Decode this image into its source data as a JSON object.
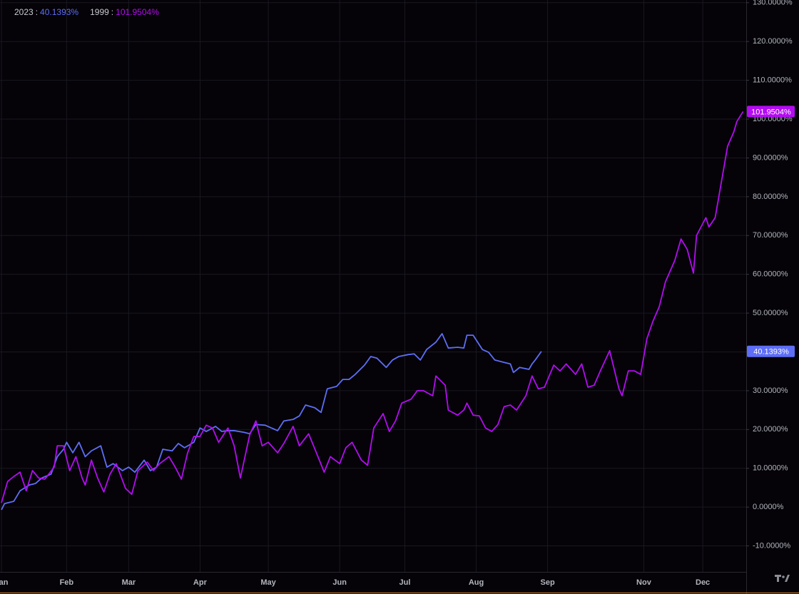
{
  "chart_data": {
    "type": "line",
    "legend_separator": ":",
    "xlim": [
      0,
      240
    ],
    "xticks": [
      {
        "value": 0,
        "label": "Jan"
      },
      {
        "value": 21,
        "label": "Feb"
      },
      {
        "value": 41,
        "label": "Mar"
      },
      {
        "value": 64,
        "label": "Apr"
      },
      {
        "value": 86,
        "label": "May"
      },
      {
        "value": 109,
        "label": "Jun"
      },
      {
        "value": 130,
        "label": "Jul"
      },
      {
        "value": 153,
        "label": "Aug"
      },
      {
        "value": 176,
        "label": "Sep"
      },
      {
        "value": 207,
        "label": "Nov"
      },
      {
        "value": 226,
        "label": "Dec"
      }
    ],
    "ylim": [
      -16.7,
      130.7
    ],
    "yticks": [
      {
        "value": -10,
        "label": "-10.0000%"
      },
      {
        "value": 0,
        "label": "0.0000%"
      },
      {
        "value": 10,
        "label": "10.0000%"
      },
      {
        "value": 20,
        "label": "20.0000%"
      },
      {
        "value": 30,
        "label": "30.0000%"
      },
      {
        "value": 40,
        "label": "40.0000%"
      },
      {
        "value": 50,
        "label": "50.0000%"
      },
      {
        "value": 60,
        "label": "60.0000%"
      },
      {
        "value": 70,
        "label": "70.0000%"
      },
      {
        "value": 80,
        "label": "80.0000%"
      },
      {
        "value": 90,
        "label": "90.0000%"
      },
      {
        "value": 100,
        "label": "100.0000%"
      },
      {
        "value": 110,
        "label": "110.0000%"
      },
      {
        "value": 120,
        "label": "120.0000%"
      },
      {
        "value": 130,
        "label": "130.0000%"
      }
    ],
    "grid": true,
    "series": [
      {
        "name": "2023",
        "color": "#5e6ef7",
        "last_value_label": "40.1393%",
        "x": [
          0,
          1,
          4,
          6,
          9,
          11,
          13,
          16,
          18,
          20,
          21,
          23,
          25,
          27,
          29,
          32,
          34,
          36,
          39,
          41,
          43,
          46,
          48,
          50,
          52,
          55,
          57,
          59,
          62,
          64,
          66,
          69,
          71,
          73,
          75,
          78,
          80,
          82,
          85,
          87,
          89,
          91,
          94,
          96,
          98,
          101,
          103,
          105,
          108,
          110,
          112,
          114,
          117,
          119,
          121,
          124,
          126,
          128,
          131,
          133,
          135,
          137,
          140,
          142,
          144,
          147,
          149,
          150,
          152,
          155,
          157,
          159,
          162,
          164,
          165,
          167,
          170,
          171,
          172,
          174
        ],
        "values": [
          -0.7,
          0.9,
          1.5,
          4.2,
          5.7,
          6.1,
          7.5,
          8.5,
          13,
          14.9,
          16.7,
          14,
          16.7,
          13,
          14.5,
          15.8,
          10.3,
          11.2,
          9.4,
          10.3,
          9,
          12.1,
          9.4,
          10.3,
          14.9,
          14.5,
          16.4,
          15.3,
          16.7,
          20.4,
          19.5,
          20.8,
          19.5,
          19.7,
          19.7,
          19.3,
          18.9,
          21.3,
          21.1,
          20.4,
          19.7,
          22.2,
          22.6,
          23.5,
          26.3,
          25.6,
          24.4,
          30.5,
          31.1,
          32.9,
          32.9,
          34.2,
          36.6,
          38.8,
          38.4,
          36,
          37.9,
          38.8,
          39.3,
          39.5,
          37.9,
          40.6,
          42.5,
          44.7,
          41,
          41.2,
          41,
          44.3,
          44.3,
          40.6,
          39.9,
          37.9,
          37.3,
          36.9,
          34.7,
          36,
          35.5,
          36.9,
          37.9,
          40.1393
        ]
      },
      {
        "name": "1999",
        "color": "#b40cf2",
        "last_value_label": "101.9504%",
        "x": [
          0,
          2,
          4,
          6,
          8,
          10,
          12,
          14,
          17,
          18,
          20,
          22,
          24,
          26,
          27,
          29,
          31,
          33,
          35,
          37,
          40,
          42,
          44,
          47,
          49,
          51,
          54,
          56,
          58,
          60,
          62,
          64,
          66,
          68,
          70,
          73,
          75,
          77,
          80,
          82,
          84,
          86,
          89,
          91,
          94,
          96,
          99,
          102,
          104,
          106,
          109,
          111,
          113,
          116,
          118,
          120,
          123,
          125,
          127,
          129,
          132,
          134,
          136,
          139,
          140,
          143,
          144,
          147,
          149,
          150,
          152,
          154,
          156,
          158,
          160,
          162,
          164,
          166,
          169,
          171,
          173,
          175,
          178,
          180,
          182,
          185,
          187,
          189,
          191,
          193,
          196,
          199,
          200,
          202,
          204,
          206,
          208,
          210,
          212,
          214,
          217,
          219,
          221,
          223,
          224,
          227,
          228,
          230,
          232,
          234,
          236,
          237,
          239
        ],
        "values": [
          1.1,
          6.6,
          7.9,
          9,
          4.2,
          9.4,
          7.5,
          7.2,
          10.3,
          15.8,
          15.8,
          9.4,
          13,
          7.5,
          5.7,
          12.1,
          7.5,
          3.9,
          8.5,
          11.2,
          4.8,
          3.3,
          9.4,
          11.6,
          9.4,
          11.2,
          13,
          10.3,
          7.2,
          14,
          18.2,
          18.2,
          21.1,
          20.4,
          16.7,
          20.4,
          15.8,
          7.5,
          18.6,
          22.2,
          15.8,
          16.7,
          14,
          16.4,
          20.8,
          15.8,
          18.9,
          13,
          9,
          13,
          11.2,
          15.3,
          16.7,
          12.1,
          10.8,
          20.4,
          24.1,
          19.5,
          22.2,
          26.8,
          27.8,
          30,
          30,
          28.7,
          33.8,
          31.4,
          25,
          23.7,
          25,
          26.8,
          23.7,
          23.5,
          20.4,
          19.5,
          21.3,
          25.9,
          26.3,
          25,
          28.7,
          33.8,
          30.5,
          30.9,
          36.6,
          35.1,
          36.9,
          34.2,
          36.9,
          30.9,
          31.4,
          35.1,
          40.3,
          30.5,
          28.7,
          35.1,
          35.1,
          34.2,
          43.4,
          48,
          51.7,
          58.1,
          63.6,
          69.1,
          66.4,
          60.3,
          70,
          74.6,
          72.2,
          74.6,
          83.8,
          93,
          96.7,
          99.4,
          101.9504
        ]
      }
    ]
  }
}
